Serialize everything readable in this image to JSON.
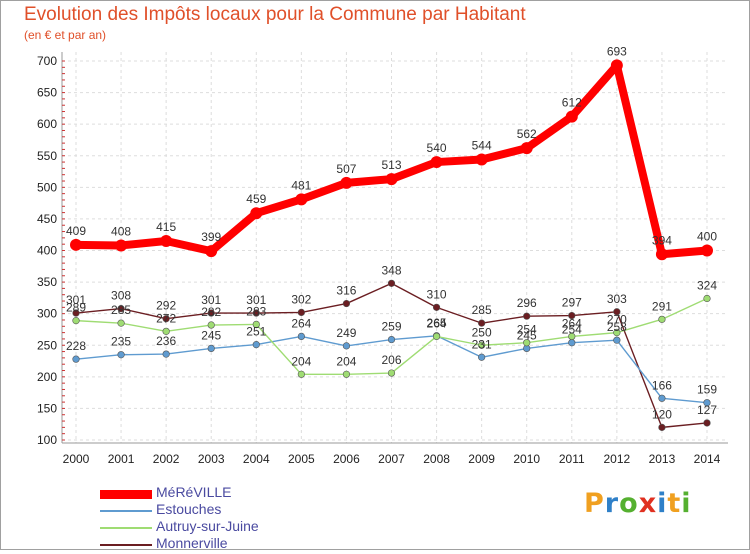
{
  "header": {
    "title": "Evolution des Impôts locaux pour la Commune par Habitant",
    "subtitle": "(en € et par an)"
  },
  "chart_data": {
    "type": "line",
    "title": "Evolution des Impôts locaux pour la Commune par Habitant",
    "subtitle": "(en € et par an)",
    "xlabel": "",
    "ylabel": "",
    "ylim": [
      100,
      700
    ],
    "yticks": [
      "100",
      "150",
      "200",
      "250",
      "300",
      "350",
      "400",
      "450",
      "500",
      "550",
      "600",
      "650",
      "700"
    ],
    "x": [
      "2000",
      "2001",
      "2002",
      "2003",
      "2004",
      "2005",
      "2006",
      "2007",
      "2008",
      "2009",
      "2010",
      "2011",
      "2012",
      "2013",
      "2014"
    ],
    "grid": true,
    "legend_position": "bottom-left",
    "series": [
      {
        "name": "Monnerville",
        "color": "#6b1e22",
        "values": [
          301,
          308,
          292,
          301,
          301,
          302,
          316,
          348,
          310,
          285,
          296,
          297,
          303,
          120,
          127
        ]
      },
      {
        "name": "Estouches",
        "color": "#5f9bd0",
        "values": [
          228,
          235,
          236,
          245,
          251,
          264,
          249,
          259,
          265,
          231,
          245,
          254,
          258,
          166,
          159
        ]
      },
      {
        "name": "Autruy-sur-Juine",
        "color": "#9fdc73",
        "values": [
          289,
          285,
          272,
          282,
          283,
          204,
          204,
          206,
          264,
          250,
          254,
          264,
          270,
          291,
          324
        ]
      },
      {
        "name": "MéRéVILLE",
        "color": "#ff0000",
        "values": [
          409,
          408,
          415,
          399,
          459,
          481,
          507,
          513,
          540,
          544,
          562,
          612,
          693,
          394,
          400
        ]
      }
    ]
  },
  "legend": {
    "items": [
      {
        "label": "MéRéVILLE",
        "color": "#ff0000"
      },
      {
        "label": "Estouches",
        "color": "#5f9bd0"
      },
      {
        "label": "Autruy-sur-Juine",
        "color": "#9fdc73"
      },
      {
        "label": "Monnerville",
        "color": "#6b1e22"
      }
    ]
  },
  "logo": {
    "letters": [
      "P",
      "r",
      "o",
      "x",
      "i",
      "t",
      "i"
    ],
    "colors": [
      "#f0a020",
      "#2f80c8",
      "#55b030",
      "#e03020",
      "#2f80c8",
      "#f0a020",
      "#55b030"
    ]
  }
}
